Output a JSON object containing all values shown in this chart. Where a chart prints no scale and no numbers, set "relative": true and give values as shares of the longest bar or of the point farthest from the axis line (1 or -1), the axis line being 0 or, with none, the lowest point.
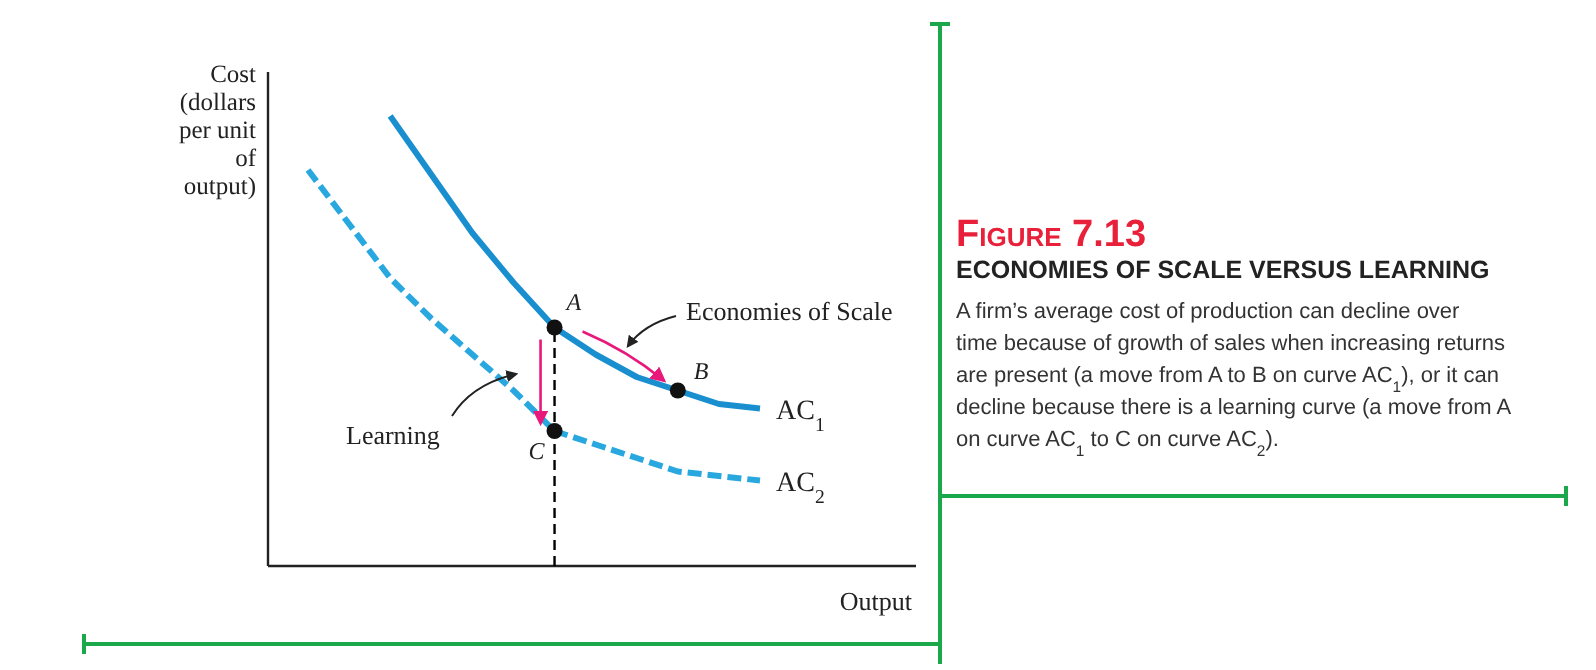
{
  "chart_data": {
    "type": "line",
    "relative": true,
    "title": "Figure 7.13",
    "subtitle": "ECONOMIES OF SCALE VERSUS LEARNING",
    "xlabel": "Output",
    "ylabel": "Cost (dollars per unit of output)",
    "categories": [
      null,
      null,
      null,
      null,
      null,
      null,
      null,
      null,
      null,
      null,
      null,
      null
    ],
    "series": [
      {
        "name": "AC$_{1}$",
        "color": "#1a8fd0",
        "line_style": "solid",
        "values": [
          null,
          null,
          1,
          0.87,
          0.74,
          0.63,
          0.53,
          0.47,
          0.42,
          0.39,
          0.36,
          0.35
        ]
      },
      {
        "name": "AC$_{2}$",
        "color": "#29a8e0",
        "line_style": "dashed",
        "values": [
          0.88,
          0.76,
          0.64,
          0.55,
          0.47,
          0.39,
          0.3,
          0.27,
          0.24,
          0.21,
          0.2,
          0.19
        ]
      }
    ],
    "legend": false,
    "annotations": [
      {
        "text": "A",
        "y": 0.53
      },
      {
        "text": "B",
        "y": 0.39
      },
      {
        "text": "C",
        "y": 0.3
      },
      "Economies of Scale",
      "Learning",
      "A firm’s average cost of production can decline over time because of growth of sales when increasing returns are present (a move from A to B on curve AC$_{1}$), or it can decline because there is a learning curve (a move from A on curve AC$_{1}$ to C on curve AC$_{2}$)."
    ]
  }
}
